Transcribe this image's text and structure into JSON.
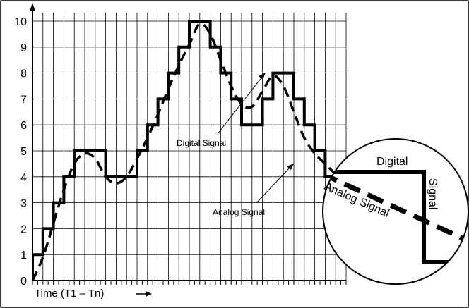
{
  "chart_data": {
    "type": "line",
    "xlabel": "Time (T1 – Tn)",
    "ylim": [
      0,
      10
    ],
    "yticks": [
      "0",
      "1",
      "2",
      "3",
      "4",
      "5",
      "6",
      "7",
      "8",
      "9",
      "10"
    ],
    "grid": true,
    "series": [
      {
        "name": "Digital Signal",
        "style": "stepped solid",
        "points": [
          [
            0,
            0
          ],
          [
            0,
            1
          ],
          [
            1,
            1
          ],
          [
            1,
            2
          ],
          [
            2,
            2
          ],
          [
            2,
            3
          ],
          [
            3,
            3
          ],
          [
            3,
            4
          ],
          [
            4,
            4
          ],
          [
            4,
            5
          ],
          [
            7,
            5
          ],
          [
            7,
            4
          ],
          [
            10,
            4
          ],
          [
            10,
            5
          ],
          [
            11,
            5
          ],
          [
            11,
            6
          ],
          [
            12,
            6
          ],
          [
            12,
            7
          ],
          [
            13,
            7
          ],
          [
            13,
            8
          ],
          [
            14,
            8
          ],
          [
            14,
            9
          ],
          [
            15,
            9
          ],
          [
            15,
            10
          ],
          [
            17,
            10
          ],
          [
            17,
            9
          ],
          [
            18,
            9
          ],
          [
            18,
            8
          ],
          [
            19,
            8
          ],
          [
            19,
            7
          ],
          [
            20,
            7
          ],
          [
            20,
            6
          ],
          [
            22,
            6
          ],
          [
            22,
            7
          ],
          [
            23,
            7
          ],
          [
            23,
            8
          ],
          [
            25,
            8
          ],
          [
            25,
            7
          ],
          [
            26,
            7
          ],
          [
            26,
            6
          ],
          [
            27,
            6
          ],
          [
            27,
            5
          ],
          [
            28,
            5
          ],
          [
            28,
            4
          ],
          [
            30,
            4
          ]
        ]
      },
      {
        "name": "Analog Signal",
        "style": "dashed smooth",
        "points": [
          [
            0,
            0
          ],
          [
            1,
            0.9
          ],
          [
            2,
            2.2
          ],
          [
            3,
            3.5
          ],
          [
            4,
            4.5
          ],
          [
            5,
            4.9
          ],
          [
            6,
            4.7
          ],
          [
            7,
            4.0
          ],
          [
            8,
            3.75
          ],
          [
            9,
            4.0
          ],
          [
            10,
            4.7
          ],
          [
            11,
            5.5
          ],
          [
            12,
            6.4
          ],
          [
            13,
            7.4
          ],
          [
            14,
            8.3
          ],
          [
            15,
            9.1
          ],
          [
            16,
            9.9
          ],
          [
            17,
            9.5
          ],
          [
            18,
            8.5
          ],
          [
            19,
            7.5
          ],
          [
            20,
            6.8
          ],
          [
            21,
            6.7
          ],
          [
            22,
            7.3
          ],
          [
            23,
            7.9
          ],
          [
            24,
            7.5
          ],
          [
            25,
            6.5
          ],
          [
            26,
            5.5
          ],
          [
            27,
            4.9
          ],
          [
            28,
            4.5
          ],
          [
            29,
            4.1
          ],
          [
            30,
            3.8
          ]
        ]
      }
    ],
    "annotations": [
      {
        "text": "Digital Signal"
      },
      {
        "text": "Analog Signal"
      }
    ],
    "inset": {
      "type": "zoom-circle",
      "labels": [
        "Digital",
        "Signal",
        "Analog Signal"
      ]
    }
  },
  "colors": {
    "line": "#000000",
    "grid": "#000000",
    "background": "#ffffff"
  }
}
